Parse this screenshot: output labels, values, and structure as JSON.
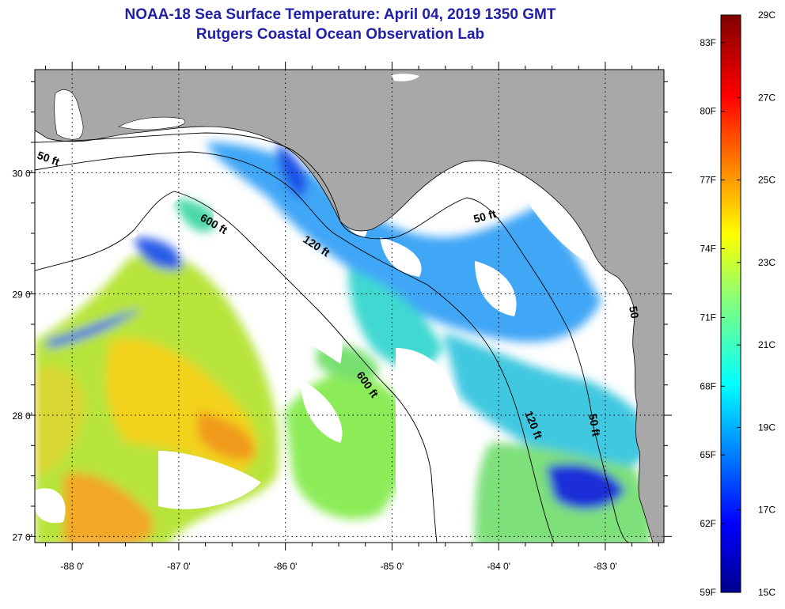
{
  "title": {
    "line1": "NOAA-18 Sea Surface Temperature:  April 04, 2019 1350 GMT",
    "line2": "Rutgers Coastal Ocean Observation Lab"
  },
  "map": {
    "lon_labels": [
      "-88 0'",
      "-87 0'",
      "-86 0'",
      "-85 0'",
      "-84 0'",
      "-83 0'"
    ],
    "lat_labels": [
      "30 0'",
      "29 0'",
      "28 0'",
      "27 0'"
    ],
    "lon_range": [
      -88.35,
      -82.45
    ],
    "lat_range": [
      26.95,
      30.85
    ],
    "contour_labels": [
      "50 ft",
      "600 ft",
      "120 ft",
      "50 ft",
      "600 ft",
      "120 ft",
      "50 ft",
      "50"
    ],
    "colors": {
      "land": "#a8a8a8",
      "ocean_nodata": "#ffffff",
      "frame": "#000000"
    }
  },
  "colorbar": {
    "fahrenheit_labels": [
      "83F",
      "80F",
      "77F",
      "74F",
      "71F",
      "68F",
      "65F",
      "62F",
      "59F"
    ],
    "celsius_labels": [
      "29C",
      "27C",
      "25C",
      "23C",
      "21C",
      "19C",
      "17C",
      "15C"
    ],
    "min_c": 15,
    "max_c": 29,
    "scale": "jet"
  }
}
